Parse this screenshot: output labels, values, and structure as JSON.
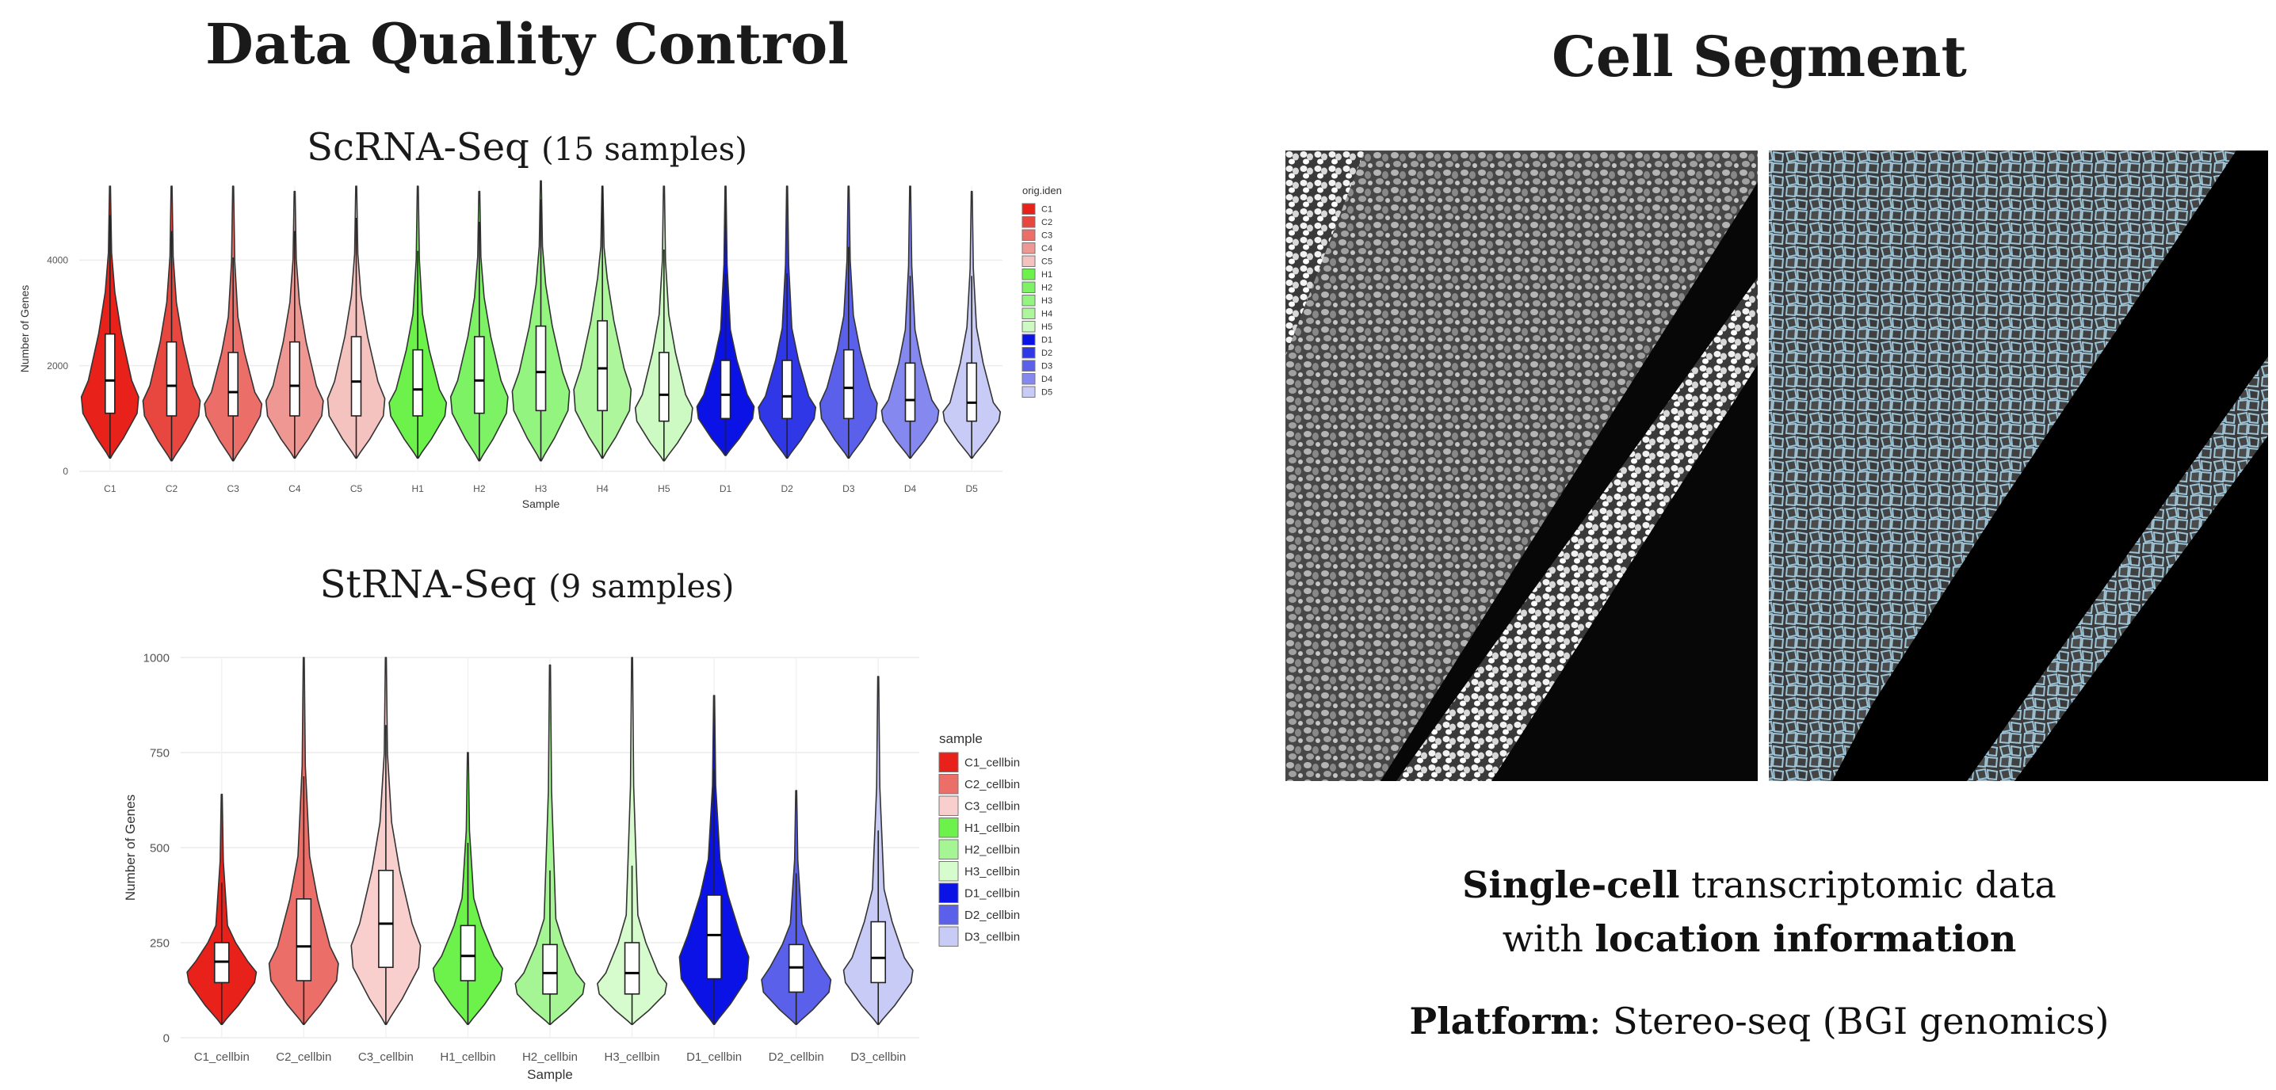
{
  "left": {
    "title": "Data Quality Control",
    "sc_title_main": "ScRNA-Seq",
    "sc_title_paren": "(15 samples)",
    "st_title_main": "StRNA-Seq",
    "st_title_paren": "(9 samples)"
  },
  "right": {
    "title": "Cell Segment",
    "line1_bold": "Single-cell",
    "line1_rest": " transcriptomic data",
    "line2_pre": "with ",
    "line2_bold": "location information",
    "line3_bold": "Platform",
    "line3_rest": ":  Stereo-seq (BGI genomics)"
  },
  "chart_data": [
    {
      "type": "violin",
      "title": "ScRNA-Seq (15 samples)",
      "xlabel": "Sample",
      "ylabel": "Number of Genes",
      "ylim": [
        0,
        5400
      ],
      "yticks": [
        0,
        2000,
        4000
      ],
      "legend_title": "orig.ident",
      "legend_position": "right",
      "categories": [
        "C1",
        "C2",
        "C3",
        "C4",
        "C5",
        "H1",
        "H2",
        "H3",
        "H4",
        "H5",
        "D1",
        "D2",
        "D3",
        "D4",
        "D5"
      ],
      "colors": [
        "#e8211a",
        "#e8473f",
        "#eb6f68",
        "#ef9792",
        "#f4c3c0",
        "#6cf24a",
        "#7ef265",
        "#93f47f",
        "#adf69c",
        "#cdf9c2",
        "#0a12e6",
        "#2f37e6",
        "#5a60ea",
        "#8488ef",
        "#c9cbf7"
      ],
      "max": [
        5400,
        5400,
        5400,
        5300,
        5400,
        5400,
        5300,
        5500,
        5400,
        5400,
        5400,
        5400,
        5400,
        5400,
        5300
      ],
      "q3": [
        2600,
        2450,
        2250,
        2450,
        2550,
        2300,
        2550,
        2750,
        2850,
        2250,
        2100,
        2100,
        2300,
        2050,
        2050
      ],
      "median": [
        1720,
        1620,
        1500,
        1620,
        1700,
        1550,
        1720,
        1880,
        1950,
        1450,
        1450,
        1420,
        1580,
        1350,
        1300
      ],
      "q1": [
        1100,
        1050,
        1050,
        1050,
        1050,
        1050,
        1100,
        1150,
        1150,
        950,
        1000,
        1000,
        1000,
        950,
        950
      ],
      "min": [
        250,
        200,
        200,
        250,
        250,
        250,
        200,
        200,
        250,
        200,
        300,
        250,
        250,
        250,
        250
      ]
    },
    {
      "type": "violin",
      "title": "StRNA-Seq (9 samples)",
      "xlabel": "Sample",
      "ylabel": "Number of Genes",
      "ylim": [
        0,
        1000
      ],
      "yticks": [
        0,
        250,
        500,
        750,
        1000
      ],
      "legend_title": "sample",
      "legend_position": "right",
      "categories": [
        "C1_cellbin",
        "C2_cellbin",
        "C3_cellbin",
        "H1_cellbin",
        "H2_cellbin",
        "H3_cellbin",
        "D1_cellbin",
        "D2_cellbin",
        "D3_cellbin"
      ],
      "colors": [
        "#e8211a",
        "#eb6f68",
        "#f8cfcd",
        "#6cf24a",
        "#a6f594",
        "#d6fbcd",
        "#0a12e6",
        "#5a60ea",
        "#c9cbf7"
      ],
      "max": [
        640,
        1000,
        1000,
        750,
        980,
        1000,
        900,
        650,
        950
      ],
      "q3": [
        250,
        365,
        440,
        295,
        245,
        250,
        375,
        245,
        305
      ],
      "median": [
        200,
        240,
        300,
        215,
        170,
        170,
        270,
        185,
        210
      ],
      "q1": [
        145,
        150,
        185,
        150,
        115,
        115,
        155,
        120,
        145
      ],
      "min": [
        35,
        35,
        35,
        35,
        35,
        35,
        35,
        35,
        35
      ]
    }
  ]
}
